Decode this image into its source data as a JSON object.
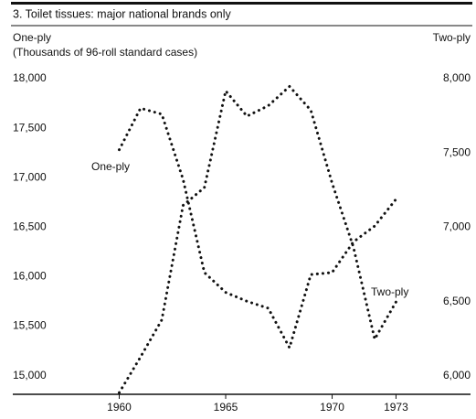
{
  "chart_data": {
    "type": "line",
    "title": "3. Toilet tissues: major national brands only",
    "y_label": "One-ply",
    "y_label_sub": "(Thousands of 96-roll standard cases)",
    "y2_label": "Two-ply",
    "x": [
      1960,
      1961,
      1962,
      1963,
      1964,
      1965,
      1966,
      1967,
      1968,
      1969,
      1970,
      1971,
      1972,
      1973
    ],
    "series": [
      {
        "name": "One-ply",
        "color": "#111111",
        "values": [
          17300,
          17720,
          17660,
          17000,
          16060,
          15860,
          15770,
          15700,
          15300,
          16040,
          16060,
          16370,
          16530,
          16800
        ]
      },
      {
        "name": "Two-ply",
        "color": "#111111",
        "axis": "y2",
        "values": [
          5900,
          6140,
          6390,
          7160,
          7280,
          7930,
          7760,
          7830,
          7960,
          7800,
          7310,
          6880,
          6260,
          6510
        ]
      }
    ],
    "xlim": [
      1955,
      1976.5
    ],
    "xticks": [
      1960,
      1965,
      1970,
      1973
    ],
    "ylim": [
      14830,
      18000
    ],
    "yticks": [
      {
        "value": 15000,
        "label": "15,000"
      },
      {
        "value": 15500,
        "label": "15,500"
      },
      {
        "value": 16000,
        "label": "16,000"
      },
      {
        "value": 16500,
        "label": "16,500"
      },
      {
        "value": 17000,
        "label": "17,000"
      },
      {
        "value": 17500,
        "label": "17,500"
      },
      {
        "value": 18000,
        "label": "18,000"
      }
    ],
    "y2lim": [
      5889,
      8000
    ],
    "y2ticks": [
      {
        "value": 6000,
        "label": "6,000"
      },
      {
        "value": 6500,
        "label": "6,500"
      },
      {
        "value": 7000,
        "label": "7,000"
      },
      {
        "value": 7500,
        "label": "7,500"
      },
      {
        "value": 8000,
        "label": "8,000"
      }
    ],
    "line_style": "dotted",
    "grid": false
  }
}
